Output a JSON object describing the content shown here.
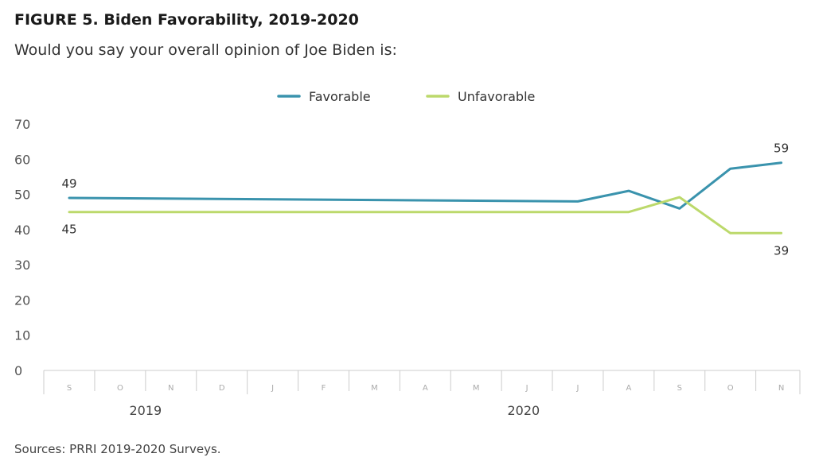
{
  "header": {
    "title": "FIGURE 5. Biden Favorability, 2019-2020",
    "subtitle": "Would you say your overall opinion of Joe Biden is:"
  },
  "footer": {
    "source": "Sources: PRRI 2019-2020 Surveys."
  },
  "colors": {
    "favorable": "#3a93ad",
    "unfavorable": "#bcd96b",
    "axis": "#cccccc",
    "tick_text": "#555555",
    "month_text": "#aaaaaa"
  },
  "chart_data": {
    "type": "line",
    "categories": [
      "S",
      "O",
      "N",
      "D",
      "J",
      "F",
      "M",
      "A",
      "M",
      "J",
      "J",
      "A",
      "S",
      "O",
      "N"
    ],
    "year_labels": [
      {
        "label": "2019",
        "start_index": 0,
        "end_index": 3
      },
      {
        "label": "2020",
        "start_index": 4,
        "end_index": 14
      }
    ],
    "series": [
      {
        "name": "Favorable",
        "color": "#3a93ad",
        "points": [
          [
            0,
            49
          ],
          [
            10,
            48
          ],
          [
            11,
            51
          ],
          [
            12,
            46
          ],
          [
            13,
            57.3
          ],
          [
            14,
            59
          ]
        ]
      },
      {
        "name": "Unfavorable",
        "color": "#bcd96b",
        "points": [
          [
            0,
            45
          ],
          [
            11,
            45
          ],
          [
            12,
            49.2
          ],
          [
            13,
            39
          ],
          [
            14,
            39
          ]
        ]
      }
    ],
    "data_labels": [
      {
        "text": "49",
        "series": 0,
        "index": 0,
        "placement": "above"
      },
      {
        "text": "45",
        "series": 1,
        "index": 0,
        "placement": "below"
      },
      {
        "text": "59",
        "series": 0,
        "index": 14,
        "placement": "above"
      },
      {
        "text": "39",
        "series": 1,
        "index": 14,
        "placement": "below"
      }
    ],
    "yticks": [
      "0",
      "10",
      "20",
      "30",
      "40",
      "50",
      "60",
      "70"
    ],
    "ylim": [
      0,
      70
    ],
    "legend_position": "top-center",
    "grid": false
  }
}
